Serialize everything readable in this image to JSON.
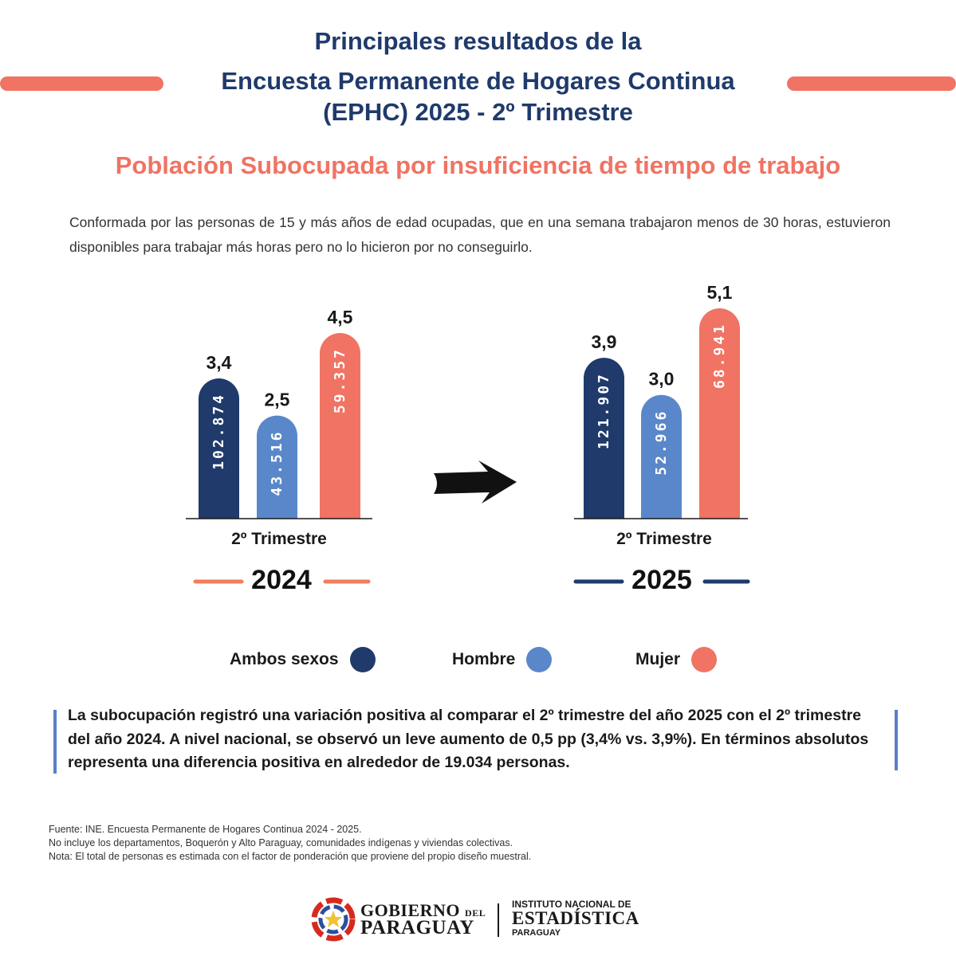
{
  "header": {
    "line1": "Principales resultados de la",
    "line2": "Encuesta Permanente de Hogares Continua",
    "line3": "(EPHC) 2025 - 2º Trimestre"
  },
  "subtitle": "Población Subocupada por insuficiencia de tiempo de trabajo",
  "description": "Conformada por las personas de 15 y más años de edad ocupadas, que en una semana trabajaron menos de 30 horas, estuvieron disponibles para trabajar más horas pero no lo hicieron por no conseguirlo.",
  "chart_data": [
    {
      "type": "bar",
      "period_label": "2º Trimestre",
      "year": "2024",
      "categories": [
        "Ambos sexos",
        "Hombre",
        "Mujer"
      ],
      "values": [
        3.4,
        2.5,
        4.5
      ],
      "value_labels": [
        "3,4",
        "2,5",
        "4,5"
      ],
      "counts": [
        "102.874",
        "43.516",
        "59.357"
      ]
    },
    {
      "type": "bar",
      "period_label": "2º Trimestre",
      "year": "2025",
      "categories": [
        "Ambos sexos",
        "Hombre",
        "Mujer"
      ],
      "values": [
        3.9,
        3.0,
        5.1
      ],
      "value_labels": [
        "3,9",
        "3,0",
        "5,1"
      ],
      "counts": [
        "121.907",
        "52.966",
        "68.941"
      ]
    }
  ],
  "legend": [
    {
      "label": "Ambos sexos",
      "color": "#1f3a6b"
    },
    {
      "label": "Hombre",
      "color": "#5a87c9"
    },
    {
      "label": "Mujer",
      "color": "#f07363"
    }
  ],
  "colors": {
    "accent": "#f07363",
    "navy": "#1f3a6b",
    "light_blue": "#5a87c9",
    "year_2024_line": "#f07e5a",
    "year_2025_line": "#1f3a6b"
  },
  "summary": "La subocupación registró una variación positiva al comparar el 2º trimestre del año 2025 con el 2º trimestre del año 2024. A nivel nacional, se observó un leve aumento de 0,5 pp (3,4% vs. 3,9%). En términos absolutos representa una diferencia positiva en alrededor de 19.034 personas.",
  "notes": [
    "Fuente: INE. Encuesta Permanente de Hogares Continua 2024 - 2025.",
    "No incluye los departamentos, Boquerón y Alto Paraguay, comunidades indígenas y viviendas colectivas.",
    "Nota: El total de personas es estimada con el factor de ponderación que proviene del propio diseño muestral."
  ],
  "logo": {
    "gov_line1": "GOBIERNO",
    "gov_del": "DEL",
    "gov_line2": "PARAGUAY",
    "ine_line1": "INSTITUTO NACIONAL DE",
    "ine_line2": "ESTADÍSTICA",
    "ine_line3": "PARAGUAY"
  }
}
